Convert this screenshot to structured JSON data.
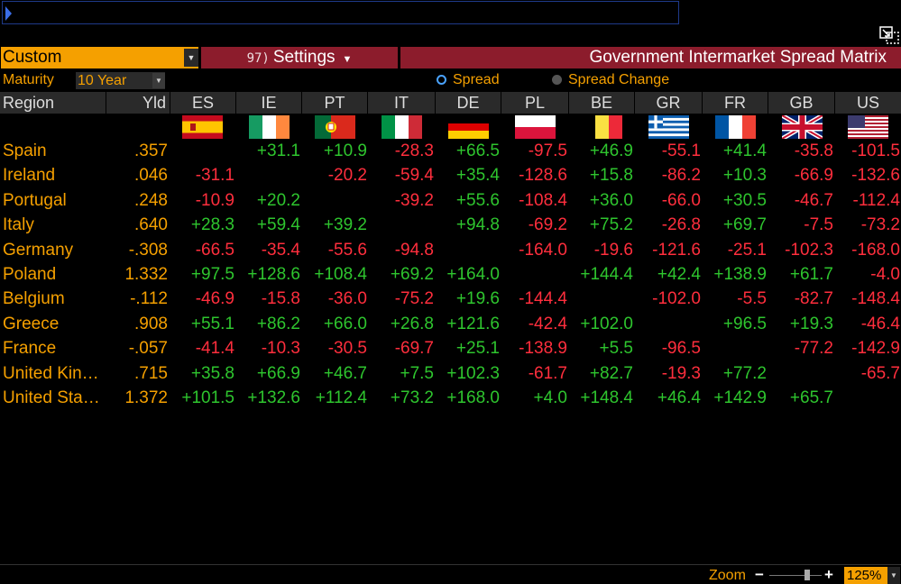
{
  "command_line": {
    "value": ""
  },
  "toolbar": {
    "view_value": "Custom",
    "settings_number": "97)",
    "settings_label": "Settings",
    "title": "Government Intermarket Spread Matrix"
  },
  "maturity": {
    "label": "Maturity",
    "value": "10 Year"
  },
  "display_mode": {
    "options": [
      {
        "label": "Spread",
        "selected": true
      },
      {
        "label": "Spread Change",
        "selected": false
      }
    ]
  },
  "headers": {
    "region": "Region",
    "yld": "Yld"
  },
  "columns": [
    "ES",
    "IE",
    "PT",
    "IT",
    "DE",
    "PL",
    "BE",
    "GR",
    "FR",
    "GB",
    "US"
  ],
  "rows": [
    {
      "name": "Spain",
      "yld": ".357",
      "values": [
        "",
        "+31.1",
        "+10.9",
        "-28.3",
        "+66.5",
        "-97.5",
        "+46.9",
        "-55.1",
        "+41.4",
        "-35.8",
        "-101.5"
      ]
    },
    {
      "name": "Ireland",
      "yld": ".046",
      "values": [
        "-31.1",
        "",
        "-20.2",
        "-59.4",
        "+35.4",
        "-128.6",
        "+15.8",
        "-86.2",
        "+10.3",
        "-66.9",
        "-132.6"
      ]
    },
    {
      "name": "Portugal",
      "yld": ".248",
      "values": [
        "-10.9",
        "+20.2",
        "",
        "-39.2",
        "+55.6",
        "-108.4",
        "+36.0",
        "-66.0",
        "+30.5",
        "-46.7",
        "-112.4"
      ]
    },
    {
      "name": "Italy",
      "yld": ".640",
      "values": [
        "+28.3",
        "+59.4",
        "+39.2",
        "",
        "+94.8",
        "-69.2",
        "+75.2",
        "-26.8",
        "+69.7",
        "-7.5",
        "-73.2"
      ]
    },
    {
      "name": "Germany",
      "yld": "-.308",
      "values": [
        "-66.5",
        "-35.4",
        "-55.6",
        "-94.8",
        "",
        "-164.0",
        "-19.6",
        "-121.6",
        "-25.1",
        "-102.3",
        "-168.0"
      ]
    },
    {
      "name": "Poland",
      "yld": "1.332",
      "values": [
        "+97.5",
        "+128.6",
        "+108.4",
        "+69.2",
        "+164.0",
        "",
        "+144.4",
        "+42.4",
        "+138.9",
        "+61.7",
        "-4.0"
      ]
    },
    {
      "name": "Belgium",
      "yld": "-.112",
      "values": [
        "-46.9",
        "-15.8",
        "-36.0",
        "-75.2",
        "+19.6",
        "-144.4",
        "",
        "-102.0",
        "-5.5",
        "-82.7",
        "-148.4"
      ]
    },
    {
      "name": "Greece",
      "yld": ".908",
      "values": [
        "+55.1",
        "+86.2",
        "+66.0",
        "+26.8",
        "+121.6",
        "-42.4",
        "+102.0",
        "",
        "+96.5",
        "+19.3",
        "-46.4"
      ]
    },
    {
      "name": "France",
      "yld": "-.057",
      "values": [
        "-41.4",
        "-10.3",
        "-30.5",
        "-69.7",
        "+25.1",
        "-138.9",
        "+5.5",
        "-96.5",
        "",
        "-77.2",
        "-142.9"
      ]
    },
    {
      "name": "United Kin…",
      "yld": ".715",
      "values": [
        "+35.8",
        "+66.9",
        "+46.7",
        "+7.5",
        "+102.3",
        "-61.7",
        "+82.7",
        "-19.3",
        "+77.2",
        "",
        "-65.7"
      ]
    },
    {
      "name": "United Sta…",
      "yld": "1.372",
      "values": [
        "+101.5",
        "+132.6",
        "+112.4",
        "+73.2",
        "+168.0",
        "+4.0",
        "+148.4",
        "+46.4",
        "+142.9",
        "+65.7",
        ""
      ]
    }
  ],
  "flags": [
    "spain-flag",
    "ireland-flag",
    "portugal-flag",
    "italy-flag",
    "germany-flag",
    "poland-flag",
    "belgium-flag",
    "greece-flag",
    "france-flag",
    "uk-flag",
    "us-flag"
  ],
  "colors": {
    "accent": "#f5a000",
    "positive": "#2ec52e",
    "negative": "#ff2e3d",
    "title_bar": "#8c1c2c",
    "header_bg": "#2a2a2a"
  },
  "zoom": {
    "label": "Zoom",
    "minus": "−",
    "plus": "+",
    "value": "125%",
    "level": 0.7
  }
}
